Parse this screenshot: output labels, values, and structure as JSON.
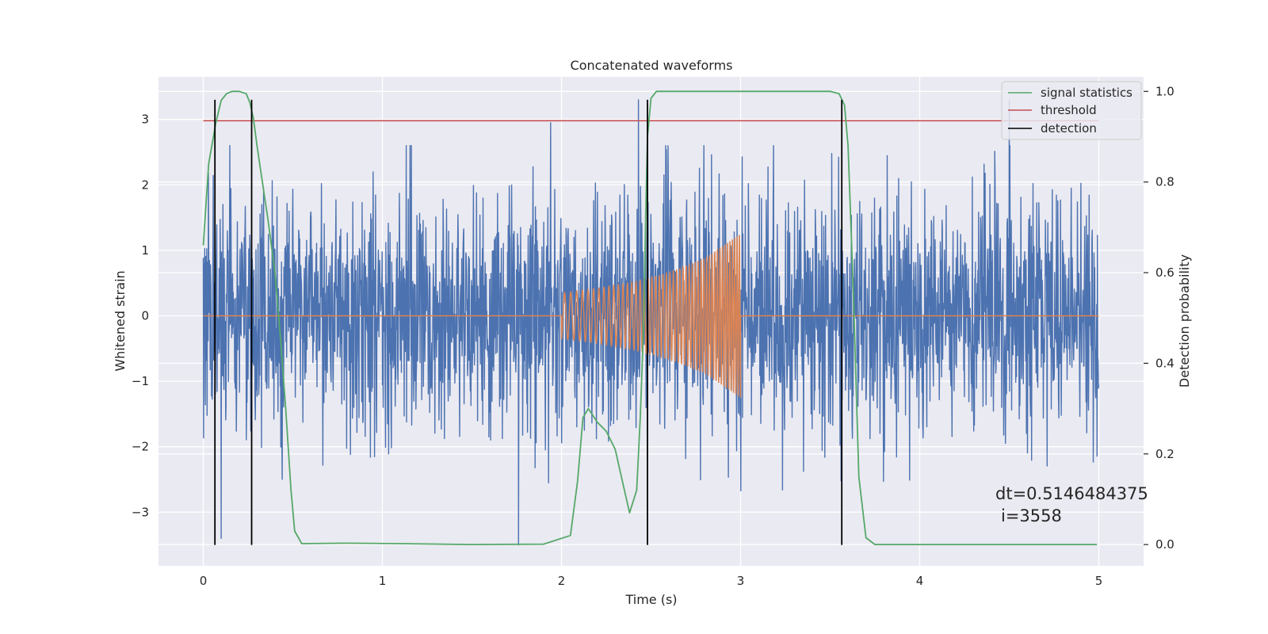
{
  "chart_data": {
    "type": "line",
    "title": "Concatenated waveforms",
    "xlabel": "Time (s)",
    "ylabel": "Whitened strain",
    "y2label": "Detection probability",
    "xlim": [
      -0.25,
      5.25
    ],
    "ylim": [
      -3.82,
      3.65
    ],
    "y2lim": [
      -0.047,
      1.032
    ],
    "x_ticks": [
      "0",
      "1",
      "2",
      "3",
      "4",
      "5"
    ],
    "y_ticks": [
      "−3",
      "−2",
      "−1",
      "0",
      "1",
      "2",
      "3"
    ],
    "y2_ticks": [
      "0.0",
      "0.2",
      "0.4",
      "0.6",
      "0.8",
      "1.0"
    ],
    "grid": true,
    "legend_position": "top-right",
    "annotation": [
      "dt=0.5146484375",
      "i=3558"
    ],
    "series": [
      {
        "name": "",
        "color": "#4c72b0",
        "description": "whitened strain noise, 0–5 s",
        "x_range": [
          0,
          5
        ],
        "amplitude_rms": 0.9,
        "extremes": [
          {
            "x": 0.1,
            "y": -3.4
          },
          {
            "x": 1.76,
            "y": -3.5
          },
          {
            "x": 1.94,
            "y": 2.95
          },
          {
            "x": 2.43,
            "y": 3.3
          },
          {
            "x": 4.5,
            "y": 3.3
          }
        ]
      },
      {
        "name": "",
        "color": "#dd8452",
        "description": "injected chirp signal",
        "x": [
          0,
          2,
          2.2,
          2.4,
          2.6,
          2.8,
          3.0,
          3.001,
          5
        ],
        "envelope": [
          0,
          0.35,
          0.42,
          0.52,
          0.66,
          0.88,
          1.25,
          0,
          0
        ],
        "frequency_hz": [
          0,
          28,
          34,
          42,
          52,
          64,
          78,
          0,
          0
        ]
      },
      {
        "name": "signal statistics",
        "color": "#55a868",
        "axis": "right",
        "x": [
          0,
          0.03,
          0.07,
          0.1,
          0.13,
          0.16,
          0.2,
          0.24,
          0.26,
          0.28,
          0.3,
          0.33,
          0.36,
          0.4,
          0.43,
          0.46,
          0.49,
          0.51,
          0.55,
          0.8,
          1.1,
          1.5,
          1.9,
          2.05,
          2.09,
          2.12,
          2.15,
          2.2,
          2.25,
          2.3,
          2.34,
          2.38,
          2.42,
          2.44,
          2.46,
          2.47,
          2.48,
          2.5,
          2.53,
          2.6,
          3.0,
          3.5,
          3.55,
          3.58,
          3.6,
          3.63,
          3.66,
          3.7,
          3.75,
          4.0,
          4.99
        ],
        "values": [
          0.66,
          0.84,
          0.93,
          0.98,
          0.995,
          1.0,
          1.0,
          0.995,
          0.975,
          0.94,
          0.88,
          0.8,
          0.72,
          0.6,
          0.46,
          0.3,
          0.12,
          0.03,
          0.002,
          0.003,
          0.002,
          0.0,
          0.001,
          0.02,
          0.14,
          0.28,
          0.3,
          0.27,
          0.25,
          0.21,
          0.14,
          0.07,
          0.12,
          0.28,
          0.5,
          0.72,
          0.9,
          0.985,
          1.0,
          1.0,
          1.0,
          1.0,
          0.995,
          0.97,
          0.88,
          0.55,
          0.15,
          0.015,
          0.0,
          0.0,
          0.0
        ]
      },
      {
        "name": "threshold",
        "color": "#c44e52",
        "x": [
          0,
          5
        ],
        "values": [
          2.98,
          2.98
        ]
      },
      {
        "name": "detection",
        "color": "#000000",
        "type": "vlines",
        "x": [
          0.065,
          0.27,
          2.48,
          3.565
        ],
        "ymin": -3.5,
        "ymax": 3.3
      }
    ]
  }
}
